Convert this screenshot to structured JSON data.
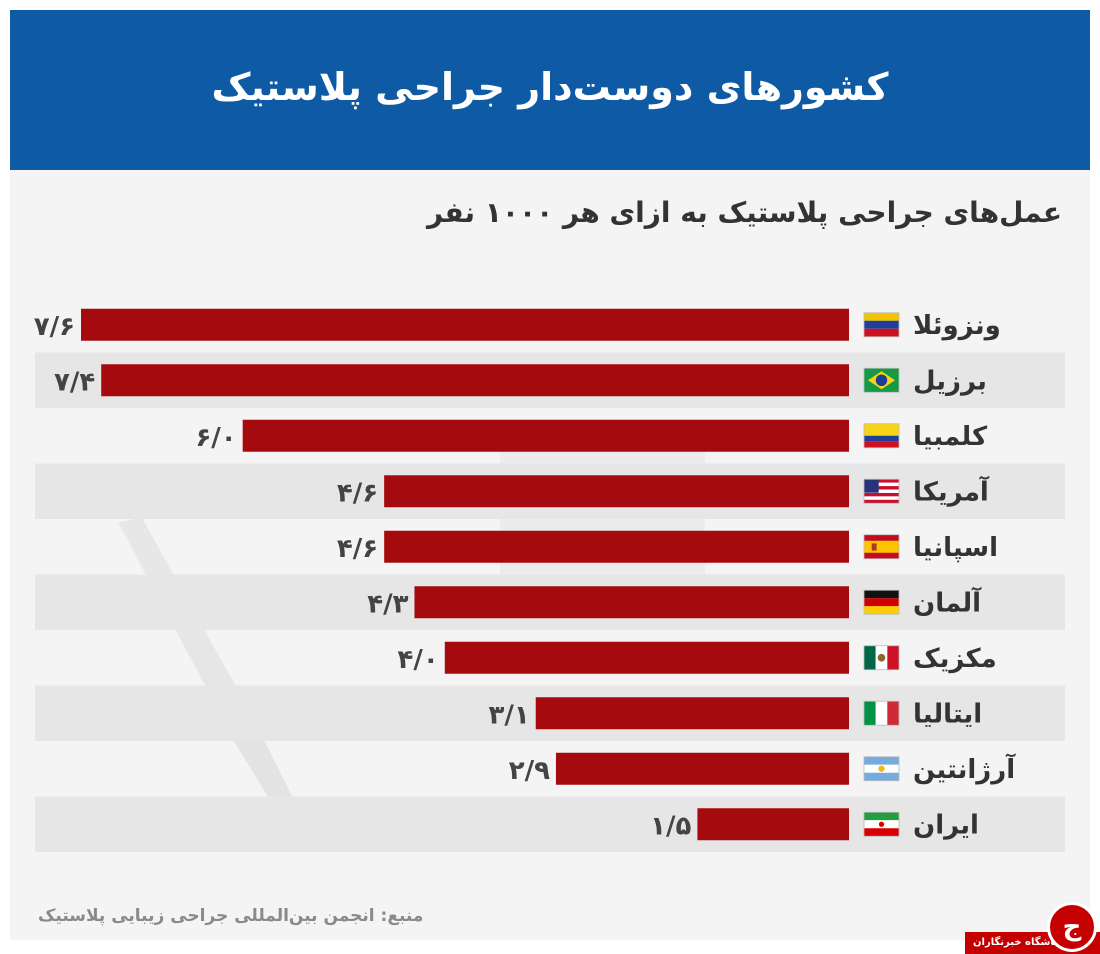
{
  "header": {
    "title": "کشورهای دوست‌دار جراحی پلاستیک"
  },
  "chart_data": {
    "type": "bar",
    "orientation": "horizontal",
    "title": "کشورهای دوست‌دار جراحی پلاستیک",
    "subtitle": "عمل‌های جراحی پلاستیک به ازای هر ۱۰۰۰ نفر",
    "categories": [
      "ونزوئلا",
      "برزیل",
      "کلمبیا",
      "آمریکا",
      "اسپانیا",
      "آلمان",
      "مکزیک",
      "ایتالیا",
      "آرژانتین",
      "ایران"
    ],
    "values": [
      7.6,
      7.4,
      6.0,
      4.6,
      4.6,
      4.3,
      4.0,
      3.1,
      2.9,
      1.5
    ],
    "value_labels": [
      "۷/۶",
      "۷/۴",
      "۶/۰",
      "۴/۶",
      "۴/۶",
      "۴/۳",
      "۴/۰",
      "۳/۱",
      "۲/۹",
      "۱/۵"
    ],
    "flags": [
      "venezuela-flag",
      "brazil-flag",
      "colombia-flag",
      "usa-flag",
      "spain-flag",
      "germany-flag",
      "mexico-flag",
      "italy-flag",
      "argentina-flag",
      "iran-flag"
    ],
    "xlim": [
      0,
      7.6
    ],
    "bar_color": "#a50b0e",
    "grid": false,
    "legend": "none"
  },
  "footer": {
    "source": "منبع: انجمن بین‌المللی جراحی زیبایی پلاستیک"
  },
  "brand": {
    "logo_glyph": "ج",
    "name": "باشگاه خبرنگاران"
  },
  "colors": {
    "header_bg": "#0f5aa5",
    "panel_bg": "#f4f4f4",
    "stripe_bg": "#e6e6e6",
    "bar": "#a50b0e",
    "brand_red": "#c40000"
  }
}
